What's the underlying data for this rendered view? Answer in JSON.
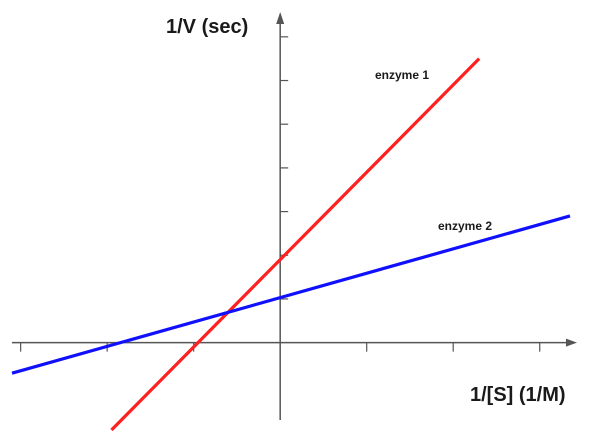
{
  "chart_data": {
    "type": "line",
    "title": "",
    "xlabel": "1/[S] (1/M)",
    "ylabel": "1/V (sec)",
    "grid": false,
    "legend": "none",
    "xlim": [
      -6.2,
      6.7
    ],
    "ylim": [
      -2.0,
      7.5
    ],
    "series": [
      {
        "name": "enzyme 1",
        "color": "#ff2020",
        "x": [
          -3.9,
          4.6
        ],
        "y": [
          -2.0,
          6.5
        ]
      },
      {
        "name": "enzyme 2",
        "color": "#1010ff",
        "x": [
          -6.2,
          6.7
        ],
        "y": [
          -0.7,
          2.9
        ]
      }
    ]
  }
}
